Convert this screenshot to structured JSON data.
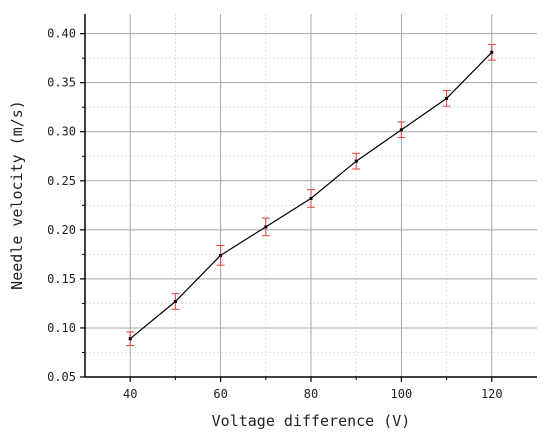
{
  "chart_data": {
    "type": "line",
    "title": "",
    "xlabel": "Voltage difference (V)",
    "ylabel": "Needle velocity (m/s)",
    "xlim": [
      30,
      130
    ],
    "ylim": [
      0.05,
      0.42
    ],
    "xticks": [
      40,
      60,
      80,
      100,
      120
    ],
    "xtick_labels": [
      "40",
      "60",
      "80",
      "100",
      "120"
    ],
    "yticks": [
      0.05,
      0.1,
      0.15,
      0.2,
      0.25,
      0.3,
      0.35,
      0.4
    ],
    "ytick_labels": [
      "0.05",
      "0.10",
      "0.15",
      "0.20",
      "0.25",
      "0.30",
      "0.35",
      "0.40"
    ],
    "grid": true,
    "legend": "none",
    "line_color": "#000000",
    "errorbar_color": "#e0403a",
    "series": [
      {
        "x": [
          40,
          50,
          60,
          70,
          80,
          90,
          100,
          110,
          120
        ],
        "y": [
          0.089,
          0.127,
          0.174,
          0.203,
          0.232,
          0.27,
          0.302,
          0.334,
          0.381
        ],
        "yerr": [
          0.007,
          0.008,
          0.01,
          0.009,
          0.009,
          0.008,
          0.008,
          0.008,
          0.008
        ]
      }
    ]
  }
}
